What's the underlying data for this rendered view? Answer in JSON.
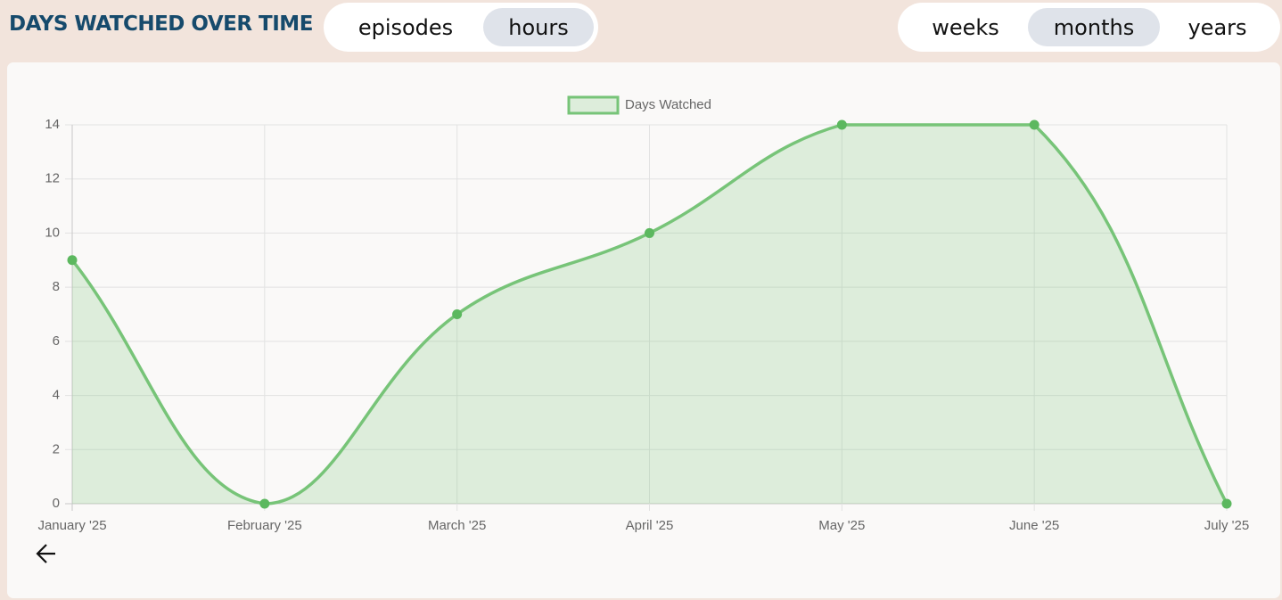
{
  "header": {
    "title": "DAYS WATCHED OVER TIME",
    "metric_options": [
      "episodes",
      "hours"
    ],
    "metric_selected": 1,
    "period_options": [
      "weeks",
      "months",
      "years"
    ],
    "period_selected": 1
  },
  "chart_data": {
    "type": "line",
    "legend": "Days Watched",
    "categories": [
      "January '25",
      "February '25",
      "March '25",
      "April '25",
      "May '25",
      "June '25",
      "July '25"
    ],
    "series": [
      {
        "name": "Days Watched",
        "color": "#77c478",
        "values": [
          9,
          0,
          7,
          10,
          14,
          14,
          0
        ]
      }
    ],
    "ylim": [
      0,
      14
    ],
    "yticks": [
      0,
      2,
      4,
      6,
      8,
      10,
      12,
      14
    ],
    "grid": true,
    "fill": true,
    "legend_position": "top"
  }
}
